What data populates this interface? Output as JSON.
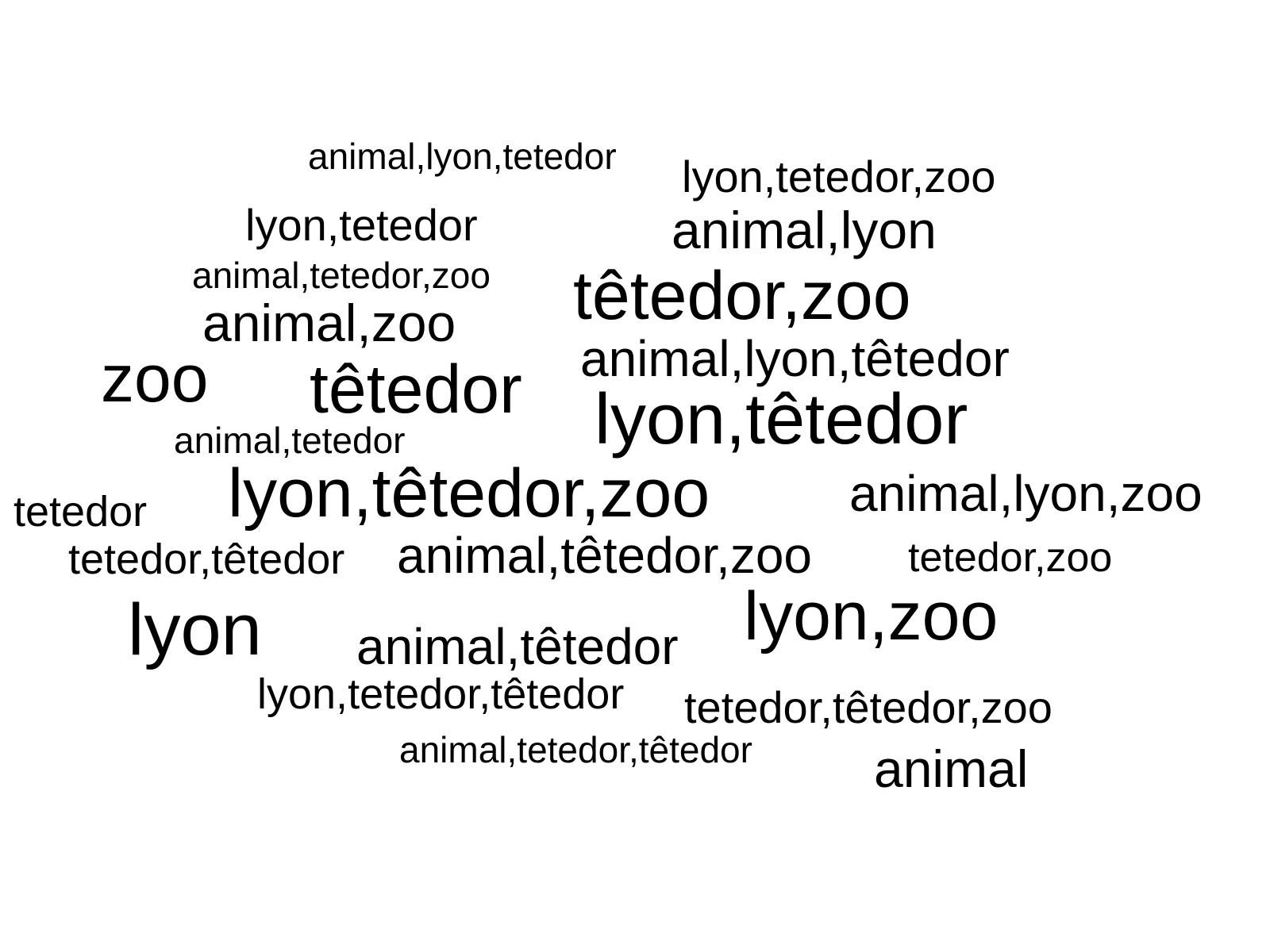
{
  "colors": {
    "background": "#ffffff",
    "text": "#000000"
  },
  "words": [
    {
      "text": "animal,lyon,tetedor",
      "weight": 1.0
    },
    {
      "text": "lyon,tetedor,zoo",
      "weight": 1.2
    },
    {
      "text": "lyon,tetedor",
      "weight": 1.2
    },
    {
      "text": "animal,lyon",
      "weight": 1.5
    },
    {
      "text": "animal,tetedor,zoo",
      "weight": 1.0
    },
    {
      "text": "têtedor,zoo",
      "weight": 2.0
    },
    {
      "text": "animal,zoo",
      "weight": 1.5
    },
    {
      "text": "animal,lyon,têtedor",
      "weight": 1.4
    },
    {
      "text": "zoo",
      "weight": 1.9
    },
    {
      "text": "têtedor",
      "weight": 2.0
    },
    {
      "text": "lyon,têtedor",
      "weight": 2.0
    },
    {
      "text": "animal,tetedor",
      "weight": 1.0
    },
    {
      "text": "lyon,têtedor,zoo",
      "weight": 2.0
    },
    {
      "text": "animal,lyon,zoo",
      "weight": 1.5
    },
    {
      "text": "tetedor",
      "weight": 1.2
    },
    {
      "text": "tetedor,têtedor",
      "weight": 1.2
    },
    {
      "text": "animal,têtedor,zoo",
      "weight": 1.5
    },
    {
      "text": "tetedor,zoo",
      "weight": 1.1
    },
    {
      "text": "lyon",
      "weight": 2.1
    },
    {
      "text": "lyon,zoo",
      "weight": 2.0
    },
    {
      "text": "animal,têtedor",
      "weight": 1.5
    },
    {
      "text": "lyon,tetedor,têtedor",
      "weight": 1.2
    },
    {
      "text": "tetedor,têtedor,zoo",
      "weight": 1.3
    },
    {
      "text": "animal,tetedor,têtedor",
      "weight": 1.0
    },
    {
      "text": "animal",
      "weight": 1.5
    }
  ]
}
